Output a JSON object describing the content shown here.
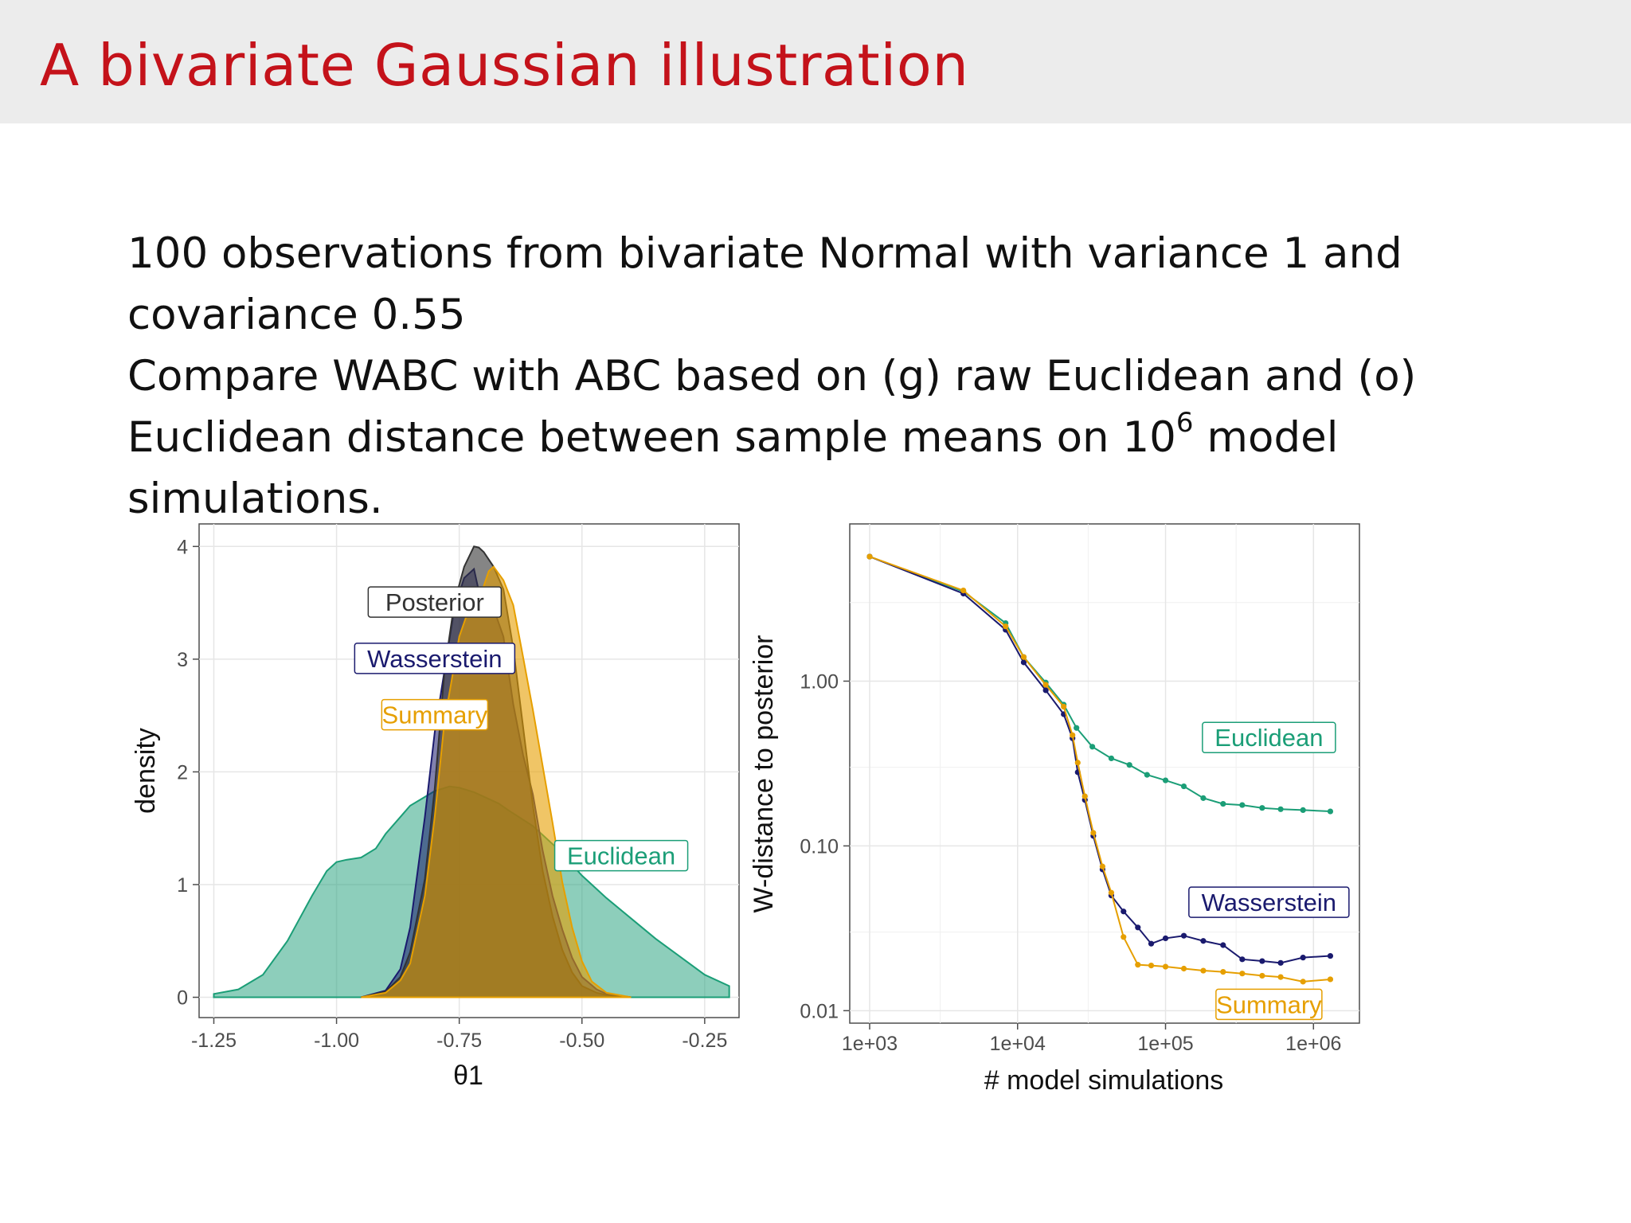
{
  "slide": {
    "title": "A bivariate Gaussian illustration",
    "line1": "100 observations from bivariate Normal with variance 1 and covariance 0.55",
    "line2_pre": "Compare WABC with ABC based on (g) raw Euclidean and (o) Euclidean distance between sample means on 10",
    "line2_sup": "6",
    "line2_post": " model simulations."
  },
  "colors": {
    "posterior": "#333333",
    "wasserstein": "#1a1a6e",
    "summary": "#e69f00",
    "euclidean": "#1b9e77",
    "title": "#c4121a"
  },
  "chart_data": [
    {
      "type": "area",
      "title": "",
      "xlabel": "θ1",
      "ylabel": "density",
      "xlim": [
        -1.28,
        -0.18
      ],
      "ylim": [
        -0.18,
        4.2
      ],
      "xticks": [
        -1.25,
        -1.0,
        -0.75,
        -0.5,
        -0.25
      ],
      "xtick_labels": [
        "-1.25",
        "-1.00",
        "-0.75",
        "-0.50",
        "-0.25"
      ],
      "yticks": [
        0,
        1,
        2,
        3,
        4
      ],
      "ytick_labels": [
        "0",
        "1",
        "2",
        "3",
        "4"
      ],
      "grid": true,
      "legend": "text labels inside plot",
      "series": [
        {
          "name": "Euclidean",
          "key": "euclidean",
          "x": [
            -1.25,
            -1.2,
            -1.15,
            -1.1,
            -1.05,
            -1.02,
            -1.0,
            -0.98,
            -0.95,
            -0.92,
            -0.9,
            -0.87,
            -0.85,
            -0.8,
            -0.77,
            -0.75,
            -0.72,
            -0.7,
            -0.67,
            -0.65,
            -0.6,
            -0.55,
            -0.5,
            -0.45,
            -0.4,
            -0.35,
            -0.3,
            -0.25,
            -0.2
          ],
          "y": [
            0.03,
            0.07,
            0.2,
            0.5,
            0.9,
            1.12,
            1.2,
            1.22,
            1.24,
            1.32,
            1.45,
            1.6,
            1.7,
            1.83,
            1.87,
            1.86,
            1.82,
            1.78,
            1.72,
            1.66,
            1.52,
            1.32,
            1.08,
            0.88,
            0.7,
            0.52,
            0.36,
            0.2,
            0.1
          ]
        },
        {
          "name": "Wasserstein",
          "key": "wasserstein",
          "x": [
            -0.95,
            -0.9,
            -0.87,
            -0.85,
            -0.82,
            -0.8,
            -0.78,
            -0.76,
            -0.74,
            -0.72,
            -0.71,
            -0.7,
            -0.68,
            -0.66,
            -0.64,
            -0.62,
            -0.6,
            -0.58,
            -0.56,
            -0.54,
            -0.52,
            -0.5,
            -0.47,
            -0.45,
            -0.4
          ],
          "y": [
            0.0,
            0.06,
            0.25,
            0.62,
            1.6,
            2.35,
            2.9,
            3.45,
            3.72,
            3.8,
            3.6,
            3.55,
            3.45,
            3.2,
            2.6,
            2.15,
            1.8,
            1.3,
            0.9,
            0.6,
            0.35,
            0.18,
            0.07,
            0.03,
            0.0
          ]
        },
        {
          "name": "Posterior",
          "key": "posterior",
          "x": [
            -0.95,
            -0.9,
            -0.87,
            -0.85,
            -0.82,
            -0.8,
            -0.78,
            -0.76,
            -0.74,
            -0.72,
            -0.71,
            -0.7,
            -0.68,
            -0.66,
            -0.64,
            -0.62,
            -0.6,
            -0.58,
            -0.56,
            -0.54,
            -0.52,
            -0.5,
            -0.47,
            -0.45,
            -0.4
          ],
          "y": [
            0.0,
            0.05,
            0.18,
            0.4,
            1.05,
            1.85,
            2.9,
            3.5,
            3.82,
            4.0,
            3.99,
            3.95,
            3.82,
            3.62,
            3.1,
            2.4,
            1.7,
            1.12,
            0.72,
            0.42,
            0.22,
            0.1,
            0.04,
            0.02,
            0.0
          ]
        },
        {
          "name": "Summary",
          "key": "summary",
          "x": [
            -0.95,
            -0.9,
            -0.87,
            -0.85,
            -0.82,
            -0.8,
            -0.78,
            -0.75,
            -0.73,
            -0.71,
            -0.69,
            -0.68,
            -0.66,
            -0.64,
            -0.62,
            -0.6,
            -0.58,
            -0.56,
            -0.54,
            -0.52,
            -0.5,
            -0.48,
            -0.45,
            -0.4
          ],
          "y": [
            0.0,
            0.04,
            0.15,
            0.3,
            0.9,
            1.6,
            2.45,
            3.2,
            3.45,
            3.52,
            3.78,
            3.82,
            3.7,
            3.48,
            3.02,
            2.55,
            2.05,
            1.55,
            1.02,
            0.62,
            0.32,
            0.14,
            0.04,
            0.0
          ]
        }
      ],
      "labels": [
        {
          "text": "Posterior",
          "key": "posterior",
          "x": -0.8,
          "y": 3.5
        },
        {
          "text": "Wasserstein",
          "key": "wasserstein",
          "x": -0.8,
          "y": 3.0
        },
        {
          "text": "Summary",
          "key": "summary",
          "x": -0.8,
          "y": 2.5
        },
        {
          "text": "Euclidean",
          "key": "euclidean",
          "x": -0.42,
          "y": 1.25
        }
      ]
    },
    {
      "type": "line",
      "title": "",
      "xlabel": "# model simulations",
      "ylabel": "W-distance to posterior",
      "xscale": "log",
      "yscale": "log",
      "xlim": [
        1000,
        1500000
      ],
      "ylim": [
        0.0084,
        9.0
      ],
      "xticks": [
        1000,
        10000,
        100000,
        1000000
      ],
      "xtick_labels": [
        "1e+03",
        "1e+04",
        "1e+05",
        "1e+06"
      ],
      "yticks": [
        0.01,
        0.1,
        1.0
      ],
      "ytick_labels": [
        "0.01",
        "0.10",
        "1.00"
      ],
      "grid": true,
      "legend": "text labels inside plot",
      "series": [
        {
          "name": "Euclidean",
          "key": "euclidean",
          "x": [
            1000,
            4300,
            8300,
            11000,
            15500,
            20500,
            25000,
            32000,
            43000,
            57000,
            75000,
            100000,
            133000,
            180000,
            245000,
            330000,
            450000,
            600000,
            850000,
            1300000
          ],
          "y": [
            5.7,
            3.5,
            2.25,
            1.4,
            0.98,
            0.72,
            0.52,
            0.4,
            0.34,
            0.31,
            0.27,
            0.25,
            0.23,
            0.195,
            0.18,
            0.177,
            0.17,
            0.167,
            0.165,
            0.162
          ]
        },
        {
          "name": "Wasserstein",
          "key": "wasserstein",
          "x": [
            1000,
            4300,
            8300,
            11000,
            15500,
            20500,
            23500,
            25500,
            28500,
            32500,
            37500,
            43000,
            52000,
            65000,
            80000,
            100000,
            133000,
            180000,
            245000,
            330000,
            450000,
            600000,
            850000,
            1300000
          ],
          "y": [
            5.7,
            3.4,
            2.05,
            1.3,
            0.88,
            0.63,
            0.45,
            0.28,
            0.19,
            0.115,
            0.072,
            0.05,
            0.04,
            0.032,
            0.0255,
            0.0275,
            0.0285,
            0.0265,
            0.025,
            0.0205,
            0.02,
            0.0195,
            0.021,
            0.0215
          ]
        },
        {
          "name": "Summary",
          "key": "summary",
          "x": [
            1000,
            4300,
            8300,
            11000,
            15500,
            20500,
            23500,
            25500,
            28500,
            32500,
            37500,
            43000,
            52000,
            65000,
            80000,
            100000,
            133000,
            180000,
            245000,
            330000,
            450000,
            600000,
            850000,
            1300000
          ],
          "y": [
            5.7,
            3.55,
            2.15,
            1.4,
            0.95,
            0.7,
            0.47,
            0.32,
            0.2,
            0.12,
            0.075,
            0.052,
            0.028,
            0.019,
            0.0188,
            0.0185,
            0.018,
            0.0175,
            0.0172,
            0.0168,
            0.0163,
            0.016,
            0.015,
            0.0155
          ]
        }
      ],
      "labels": [
        {
          "text": "Euclidean",
          "key": "euclidean",
          "x": 500000,
          "y": 0.45
        },
        {
          "text": "Wasserstein",
          "key": "wasserstein",
          "x": 500000,
          "y": 0.045
        },
        {
          "text": "Summary",
          "key": "summary",
          "x": 500000,
          "y": 0.0108
        }
      ]
    }
  ]
}
